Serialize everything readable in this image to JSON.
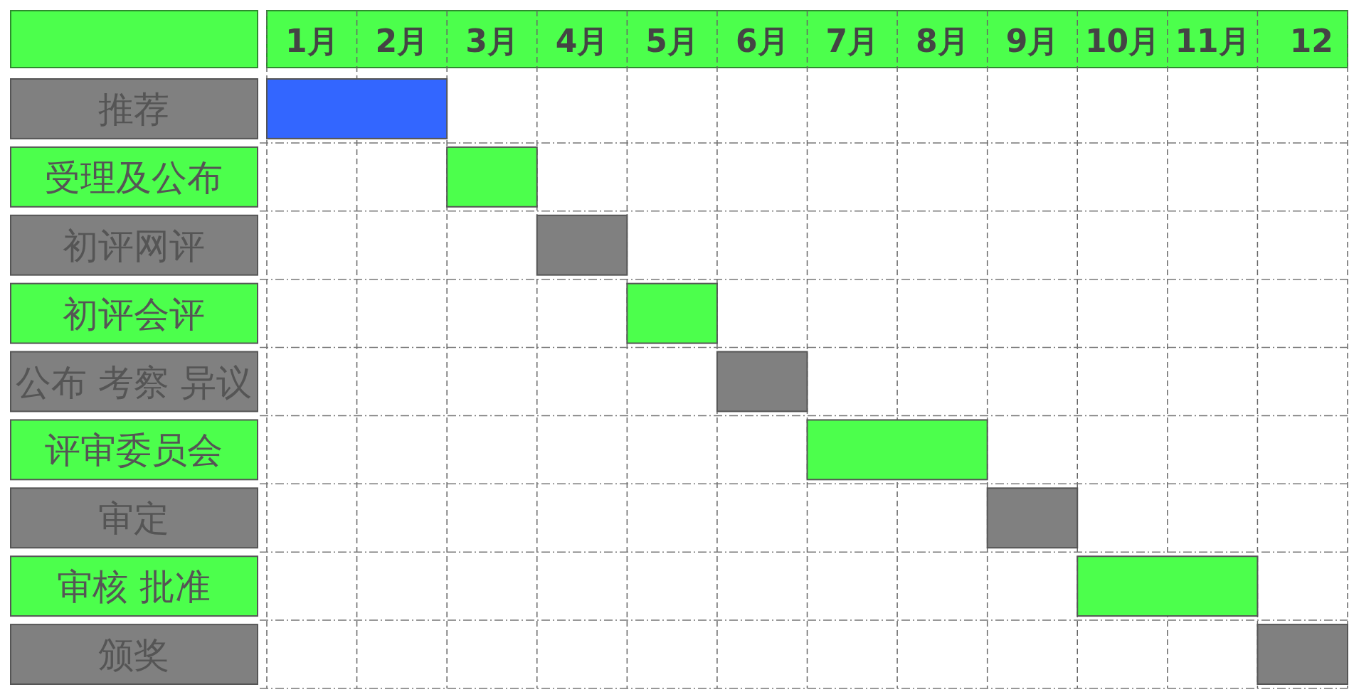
{
  "chart_data": {
    "type": "bar",
    "orientation": "horizontal",
    "categories": [
      "推荐",
      "受理及公布",
      "初评网评",
      "初评会评",
      "公布 考察 异议",
      "评审委员会",
      "审定",
      "审核 批准",
      "颁奖"
    ],
    "base": [
      0,
      2,
      3,
      4,
      5,
      6,
      8,
      9,
      11
    ],
    "values": [
      2,
      1,
      1,
      1,
      1,
      2,
      1,
      2,
      1
    ],
    "colors": [
      "#3366ff",
      "#4cff4c",
      "#808080",
      "#4cff4c",
      "#808080",
      "#4cff4c",
      "#808080",
      "#4cff4c",
      "#808080"
    ],
    "xlim": [
      0,
      12
    ],
    "xticks": [
      {
        "value": 0,
        "label": null
      },
      {
        "value": 1,
        "label": null
      },
      {
        "value": 2,
        "label": null
      },
      {
        "value": 3,
        "label": null
      },
      {
        "value": 4,
        "label": null
      },
      {
        "value": 5,
        "label": null
      },
      {
        "value": 6,
        "label": null
      },
      {
        "value": 7,
        "label": null
      },
      {
        "value": 8,
        "label": null
      },
      {
        "value": 9,
        "label": null
      },
      {
        "value": 10,
        "label": null
      },
      {
        "value": 11,
        "label": null
      },
      {
        "value": 12,
        "label": null
      },
      {
        "value": 0.5,
        "label": "1月"
      },
      {
        "value": 1.5,
        "label": "2月"
      },
      {
        "value": 2.5,
        "label": "3月"
      },
      {
        "value": 3.5,
        "label": "4月"
      },
      {
        "value": 4.5,
        "label": "5月"
      },
      {
        "value": 5.5,
        "label": "6月"
      },
      {
        "value": 6.5,
        "label": "7月"
      },
      {
        "value": 7.5,
        "label": "8月"
      },
      {
        "value": 8.5,
        "label": "9月"
      },
      {
        "value": 9.5,
        "label": "10月"
      },
      {
        "value": 10.5,
        "label": "11月"
      },
      {
        "value": 11.6,
        "label": "12"
      }
    ],
    "grid": true
  }
}
